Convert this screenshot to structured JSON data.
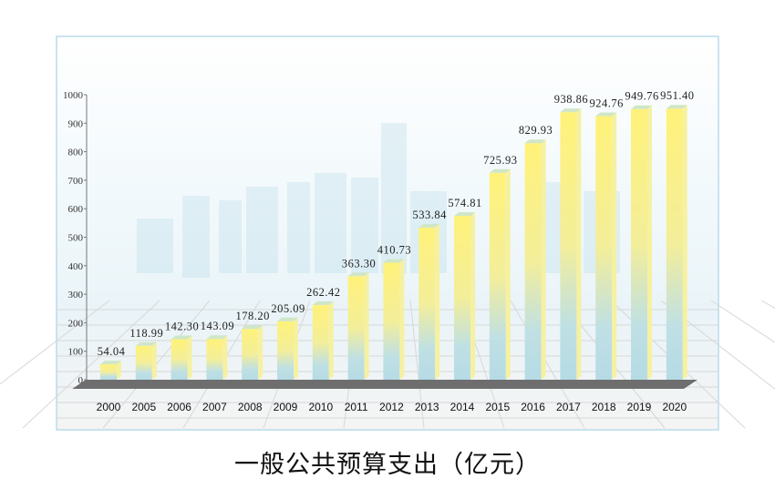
{
  "chart_data": {
    "type": "bar",
    "title": "一般公共预算支出（亿元）",
    "xlabel": "",
    "ylabel": "",
    "ylim": [
      0,
      1000
    ],
    "yticks": [
      0,
      100,
      200,
      300,
      400,
      500,
      600,
      700,
      800,
      900,
      1000
    ],
    "categories": [
      "2000",
      "2005",
      "2006",
      "2007",
      "2008",
      "2009",
      "2010",
      "2011",
      "2012",
      "2013",
      "2014",
      "2015",
      "2016",
      "2017",
      "2018",
      "2019",
      "2020"
    ],
    "values": [
      54.04,
      118.99,
      142.3,
      143.09,
      178.2,
      205.09,
      262.42,
      363.3,
      410.73,
      533.84,
      574.81,
      725.93,
      829.93,
      938.86,
      924.76,
      949.76,
      951.4
    ],
    "labels": [
      "54.04",
      "118.99",
      "142.30",
      "143.09",
      "178.20",
      "205.09",
      "262.42",
      "363.30",
      "410.73",
      "533.84",
      "574.81",
      "725.93",
      "829.93",
      "938.86",
      "924.76",
      "949.76",
      "951.40"
    ],
    "colors": {
      "bar_top": "#fff27a",
      "bar_bottom": "#b8dde6",
      "floor": "#6e6e6e",
      "frame": "#b9dbe8"
    }
  }
}
